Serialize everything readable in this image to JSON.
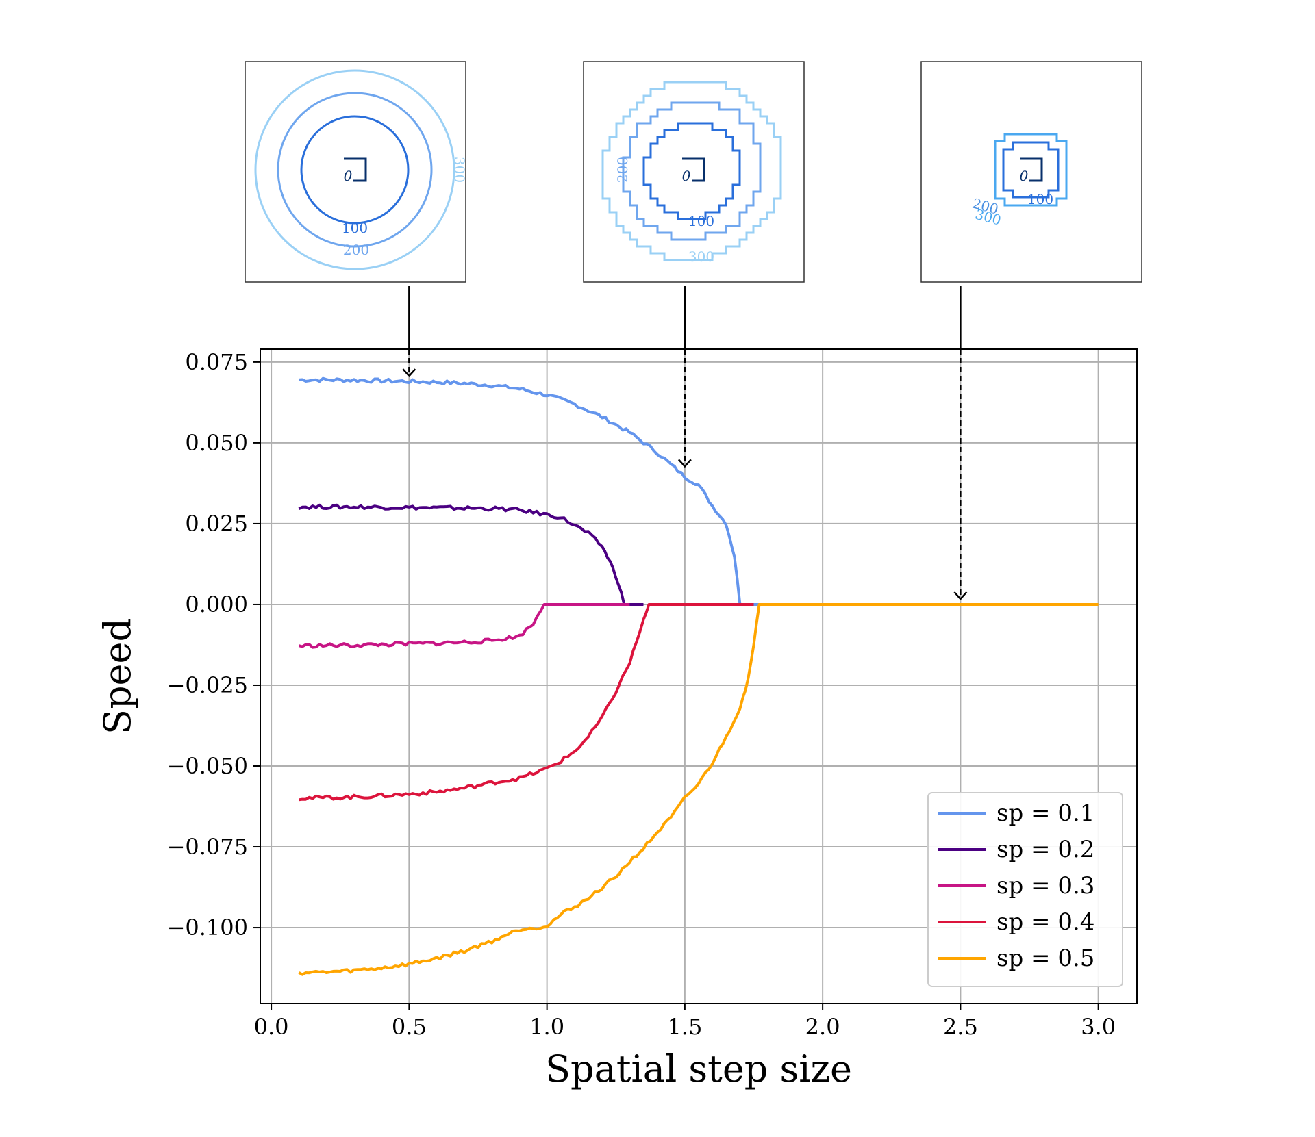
{
  "chart_data": {
    "type": "line",
    "xlabel": "Spatial step size",
    "ylabel": "Speed",
    "xlim": [
      -0.04,
      3.14
    ],
    "ylim": [
      -0.1235,
      0.079
    ],
    "xticks": [
      0.0,
      0.5,
      1.0,
      1.5,
      2.0,
      2.5,
      3.0
    ],
    "xtick_labels": [
      "0.0",
      "0.5",
      "1.0",
      "1.5",
      "2.0",
      "2.5",
      "3.0"
    ],
    "yticks": [
      0.075,
      0.05,
      0.025,
      0.0,
      -0.025,
      -0.05,
      -0.075,
      -0.1
    ],
    "ytick_labels": [
      "0.075",
      "0.050",
      "0.025",
      "0.000",
      "−0.025",
      "−0.050",
      "−0.075",
      "−0.100"
    ],
    "grid": true,
    "legend_position": "lower-right",
    "series": [
      {
        "name": "sp = 0.1",
        "color": "#6495ed",
        "points": [
          [
            0.1,
            0.0695
          ],
          [
            0.2,
            0.0695
          ],
          [
            0.3,
            0.0694
          ],
          [
            0.4,
            0.0692
          ],
          [
            0.5,
            0.069
          ],
          [
            0.6,
            0.0688
          ],
          [
            0.7,
            0.0684
          ],
          [
            0.8,
            0.0678
          ],
          [
            0.9,
            0.0667
          ],
          [
            1.0,
            0.0648
          ],
          [
            1.1,
            0.062
          ],
          [
            1.2,
            0.058
          ],
          [
            1.3,
            0.0532
          ],
          [
            1.4,
            0.047
          ],
          [
            1.5,
            0.0395
          ],
          [
            1.55,
            0.037
          ],
          [
            1.6,
            0.0305
          ],
          [
            1.65,
            0.025
          ],
          [
            1.68,
            0.015
          ],
          [
            1.7,
            0.0
          ],
          [
            1.8,
            0.0
          ]
        ]
      },
      {
        "name": "sp = 0.2",
        "color": "#4b0082",
        "points": [
          [
            0.1,
            0.0302
          ],
          [
            0.2,
            0.0302
          ],
          [
            0.3,
            0.0302
          ],
          [
            0.4,
            0.0301
          ],
          [
            0.5,
            0.03
          ],
          [
            0.6,
            0.0299
          ],
          [
            0.7,
            0.0298
          ],
          [
            0.8,
            0.0297
          ],
          [
            0.9,
            0.0292
          ],
          [
            1.0,
            0.0278
          ],
          [
            1.05,
            0.027
          ],
          [
            1.1,
            0.0245
          ],
          [
            1.15,
            0.022
          ],
          [
            1.2,
            0.018
          ],
          [
            1.23,
            0.013
          ],
          [
            1.26,
            0.0065
          ],
          [
            1.28,
            0.0
          ],
          [
            1.35,
            0.0
          ]
        ]
      },
      {
        "name": "sp = 0.3",
        "color": "#c71585",
        "points": [
          [
            0.1,
            -0.0128
          ],
          [
            0.2,
            -0.0127
          ],
          [
            0.3,
            -0.0126
          ],
          [
            0.4,
            -0.0124
          ],
          [
            0.5,
            -0.0122
          ],
          [
            0.6,
            -0.012
          ],
          [
            0.7,
            -0.0117
          ],
          [
            0.8,
            -0.0112
          ],
          [
            0.9,
            -0.0098
          ],
          [
            0.95,
            -0.006
          ],
          [
            0.99,
            0.0
          ],
          [
            1.3,
            0.0
          ]
        ]
      },
      {
        "name": "sp = 0.4",
        "color": "#dc143c",
        "points": [
          [
            0.1,
            -0.0599
          ],
          [
            0.2,
            -0.0598
          ],
          [
            0.3,
            -0.0596
          ],
          [
            0.4,
            -0.0592
          ],
          [
            0.5,
            -0.0587
          ],
          [
            0.6,
            -0.058
          ],
          [
            0.7,
            -0.0568
          ],
          [
            0.8,
            -0.0552
          ],
          [
            0.9,
            -0.0538
          ],
          [
            1.0,
            -0.0508
          ],
          [
            1.05,
            -0.0485
          ],
          [
            1.1,
            -0.0455
          ],
          [
            1.15,
            -0.041
          ],
          [
            1.2,
            -0.035
          ],
          [
            1.25,
            -0.027
          ],
          [
            1.3,
            -0.018
          ],
          [
            1.35,
            -0.005
          ],
          [
            1.37,
            0.0
          ],
          [
            1.75,
            0.0
          ]
        ]
      },
      {
        "name": "sp = 0.5",
        "color": "#ffa500",
        "points": [
          [
            0.1,
            -0.114
          ],
          [
            0.2,
            -0.1138
          ],
          [
            0.3,
            -0.1133
          ],
          [
            0.4,
            -0.1125
          ],
          [
            0.5,
            -0.1113
          ],
          [
            0.6,
            -0.1095
          ],
          [
            0.7,
            -0.1072
          ],
          [
            0.8,
            -0.1042
          ],
          [
            0.9,
            -0.1005
          ],
          [
            1.0,
            -0.0995
          ],
          [
            1.05,
            -0.096
          ],
          [
            1.1,
            -0.0935
          ],
          [
            1.15,
            -0.091
          ],
          [
            1.2,
            -0.0875
          ],
          [
            1.25,
            -0.0842
          ],
          [
            1.3,
            -0.0795
          ],
          [
            1.35,
            -0.0755
          ],
          [
            1.4,
            -0.0705
          ],
          [
            1.45,
            -0.066
          ],
          [
            1.5,
            -0.06
          ],
          [
            1.55,
            -0.0555
          ],
          [
            1.6,
            -0.049
          ],
          [
            1.65,
            -0.041
          ],
          [
            1.7,
            -0.032
          ],
          [
            1.73,
            -0.023
          ],
          [
            1.75,
            -0.013
          ],
          [
            1.77,
            0.0
          ],
          [
            3.0,
            0.0
          ]
        ]
      }
    ],
    "annotations": [
      {
        "x": 0.5,
        "y": 0.069,
        "inset_index": 0
      },
      {
        "x": 1.5,
        "y": 0.041,
        "inset_index": 1
      },
      {
        "x": 2.5,
        "y": 0.0,
        "inset_index": 2
      }
    ],
    "insets": [
      {
        "levels": [
          {
            "label": "0",
            "color": "#08306b"
          },
          {
            "label": "100",
            "color": "#2a6fdb"
          },
          {
            "label": "200",
            "color": "#6fa6ee"
          },
          {
            "label": "300",
            "color": "#9ad0f5"
          }
        ]
      },
      {
        "levels": [
          {
            "label": "0",
            "color": "#08306b"
          },
          {
            "label": "100",
            "color": "#2a6fdb"
          },
          {
            "label": "200",
            "color": "#6fa6ee"
          },
          {
            "label": "300",
            "color": "#9ad0f5"
          }
        ]
      },
      {
        "levels": [
          {
            "label": "0",
            "color": "#08306b"
          },
          {
            "label": "100",
            "color": "#2a6fdb"
          },
          {
            "label": "200",
            "color": "#4a90e2"
          },
          {
            "label": "300",
            "color": "#4aa8f0"
          }
        ]
      }
    ]
  }
}
